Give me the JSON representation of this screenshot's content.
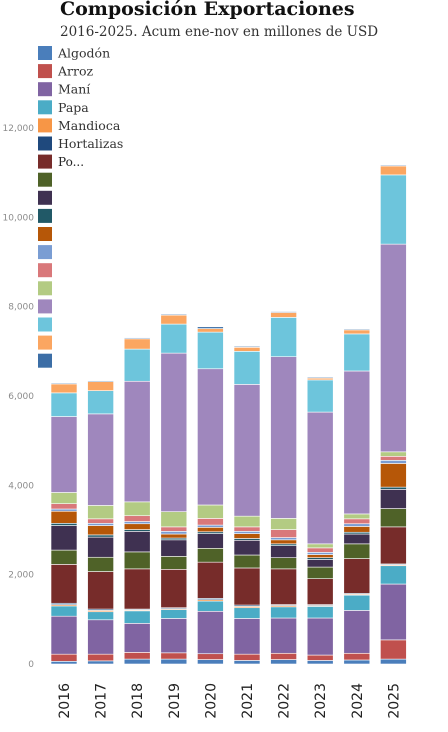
{
  "chart_data": {
    "type": "bar",
    "stacked": true,
    "title": "Composición Exportaciones",
    "subtitle": "2016-2025. Acum ene-nov en millones de USD",
    "xlabel": "",
    "ylabel": "",
    "ylim": [
      0,
      12000
    ],
    "yticks": [
      0,
      2000,
      4000,
      6000,
      8000,
      10000,
      12000
    ],
    "ytick_labels": [
      "0",
      "2,000",
      "4,000",
      "6,000",
      "8,000",
      "10,000",
      "12,000"
    ],
    "grid": false,
    "legend_position": "top-left",
    "overlapping_legend_text": "Po...",
    "categories": [
      "2016",
      "2017",
      "2018",
      "2019",
      "2020",
      "2021",
      "2022",
      "2023",
      "2024",
      "2025"
    ],
    "series": [
      {
        "name": "Algodón",
        "color": "#4a7ebb",
        "values": [
          60,
          70,
          110,
          110,
          100,
          80,
          100,
          80,
          90,
          110
        ]
      },
      {
        "name": "Arroz",
        "color": "#c0504d",
        "values": [
          160,
          150,
          150,
          140,
          130,
          140,
          140,
          120,
          150,
          430
        ]
      },
      {
        "name": "Maní",
        "color": "#8064a2",
        "values": [
          850,
          770,
          650,
          770,
          950,
          800,
          790,
          830,
          960,
          1250
        ]
      },
      {
        "name": "Papa",
        "color": "#4bacc6",
        "values": [
          230,
          180,
          280,
          200,
          230,
          240,
          250,
          260,
          340,
          410
        ]
      },
      {
        "name": "Mandioca",
        "color": "#f79646",
        "values": [
          30,
          30,
          20,
          20,
          30,
          30,
          30,
          20,
          20,
          20
        ]
      },
      {
        "name": "Hortalizas",
        "color": "#1f497d",
        "values": [
          30,
          30,
          20,
          20,
          30,
          30,
          20,
          20,
          20,
          20
        ]
      },
      {
        "name": "",
        "color": "#772c2a",
        "values": [
          870,
          840,
          900,
          860,
          810,
          830,
          800,
          580,
          780,
          830
        ]
      },
      {
        "name": "",
        "color": "#4f6228",
        "values": [
          320,
          320,
          380,
          290,
          310,
          290,
          250,
          260,
          330,
          410
        ]
      },
      {
        "name": "",
        "color": "#3f3151",
        "values": [
          550,
          450,
          460,
          370,
          330,
          330,
          270,
          170,
          220,
          430
        ]
      },
      {
        "name": "",
        "color": "#215967",
        "values": [
          50,
          50,
          40,
          40,
          40,
          40,
          40,
          40,
          40,
          50
        ]
      },
      {
        "name": "",
        "color": "#b65708",
        "values": [
          270,
          210,
          130,
          90,
          100,
          110,
          90,
          70,
          130,
          530
        ]
      },
      {
        "name": "",
        "color": "#7a9dd3",
        "values": [
          50,
          50,
          50,
          60,
          50,
          50,
          50,
          50,
          60,
          70
        ]
      },
      {
        "name": "",
        "color": "#d9787a",
        "values": [
          120,
          100,
          130,
          100,
          150,
          100,
          180,
          100,
          110,
          90
        ]
      },
      {
        "name": "",
        "color": "#b3cb83",
        "values": [
          250,
          300,
          310,
          340,
          300,
          240,
          250,
          90,
          110,
          100
        ]
      },
      {
        "name": "",
        "color": "#9f87bd",
        "values": [
          1700,
          2050,
          2700,
          3550,
          3050,
          2950,
          3620,
          2950,
          3200,
          4650
        ]
      },
      {
        "name": "",
        "color": "#6dc5dc",
        "values": [
          530,
          520,
          720,
          650,
          820,
          740,
          880,
          720,
          830,
          1550
        ]
      },
      {
        "name": "",
        "color": "#fba661",
        "values": [
          200,
          200,
          230,
          200,
          80,
          90,
          110,
          40,
          90,
          200
        ]
      },
      {
        "name": "",
        "color": "#3c6ea6",
        "values": [
          20,
          20,
          20,
          20,
          40,
          20,
          20,
          20,
          20,
          20
        ]
      }
    ]
  }
}
